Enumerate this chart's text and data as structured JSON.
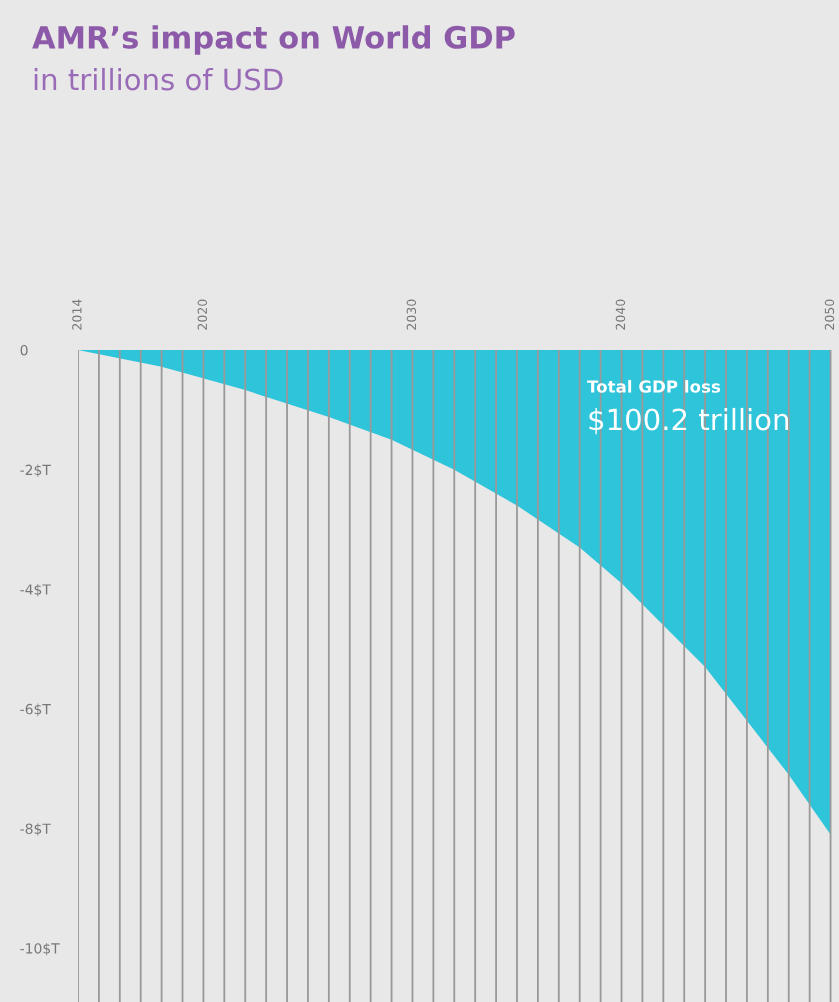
{
  "chart_data": {
    "type": "area",
    "title": "AMR’s impact on World GDP",
    "subtitle": "in trillions of USD",
    "x": [
      2014,
      2018,
      2022,
      2026,
      2029,
      2032,
      2035,
      2038,
      2040,
      2042,
      2044,
      2046,
      2048,
      2050
    ],
    "series": [
      {
        "color": "#2ec4da",
        "values": [
          0,
          -0.28,
          -0.67,
          -1.12,
          -1.5,
          -2.0,
          -2.6,
          -3.3,
          -3.9,
          -4.6,
          -5.3,
          -6.2,
          -7.1,
          -8.1
        ]
      }
    ],
    "annotations": [
      "Total GDP loss",
      "$100.2 trillion"
    ],
    "xlim": [
      2014,
      2050.4
    ],
    "ylim": [
      -10.9,
      0
    ],
    "xticks": [
      2014,
      {
        "value": 2015,
        "label": null
      },
      {
        "value": 2016,
        "label": null
      },
      {
        "value": 2017,
        "label": null
      },
      {
        "value": 2018,
        "label": null
      },
      {
        "value": 2019,
        "label": null
      },
      2020,
      {
        "value": 2021,
        "label": null
      },
      {
        "value": 2022,
        "label": null
      },
      {
        "value": 2023,
        "label": null
      },
      {
        "value": 2024,
        "label": null
      },
      {
        "value": 2025,
        "label": null
      },
      {
        "value": 2026,
        "label": null
      },
      {
        "value": 2027,
        "label": null
      },
      {
        "value": 2028,
        "label": null
      },
      {
        "value": 2029,
        "label": null
      },
      2030,
      {
        "value": 2031,
        "label": null
      },
      {
        "value": 2032,
        "label": null
      },
      {
        "value": 2033,
        "label": null
      },
      {
        "value": 2034,
        "label": null
      },
      {
        "value": 2035,
        "label": null
      },
      {
        "value": 2036,
        "label": null
      },
      {
        "value": 2037,
        "label": null
      },
      {
        "value": 2038,
        "label": null
      },
      {
        "value": 2039,
        "label": null
      },
      2040,
      {
        "value": 2041,
        "label": null
      },
      {
        "value": 2042,
        "label": null
      },
      {
        "value": 2043,
        "label": null
      },
      {
        "value": 2044,
        "label": null
      },
      {
        "value": 2045,
        "label": null
      },
      {
        "value": 2046,
        "label": null
      },
      {
        "value": 2047,
        "label": null
      },
      {
        "value": 2048,
        "label": null
      },
      {
        "value": 2049,
        "label": null
      },
      2050
    ],
    "yticks": [
      0,
      {
        "value": -2,
        "label": "-2$T"
      },
      {
        "value": -4,
        "label": "-4$T"
      },
      {
        "value": -6,
        "label": "-6$T"
      },
      {
        "value": -8,
        "label": "-8$T"
      },
      {
        "value": -10,
        "label": "-10$T"
      }
    ],
    "grid": "x",
    "legend": false
  }
}
